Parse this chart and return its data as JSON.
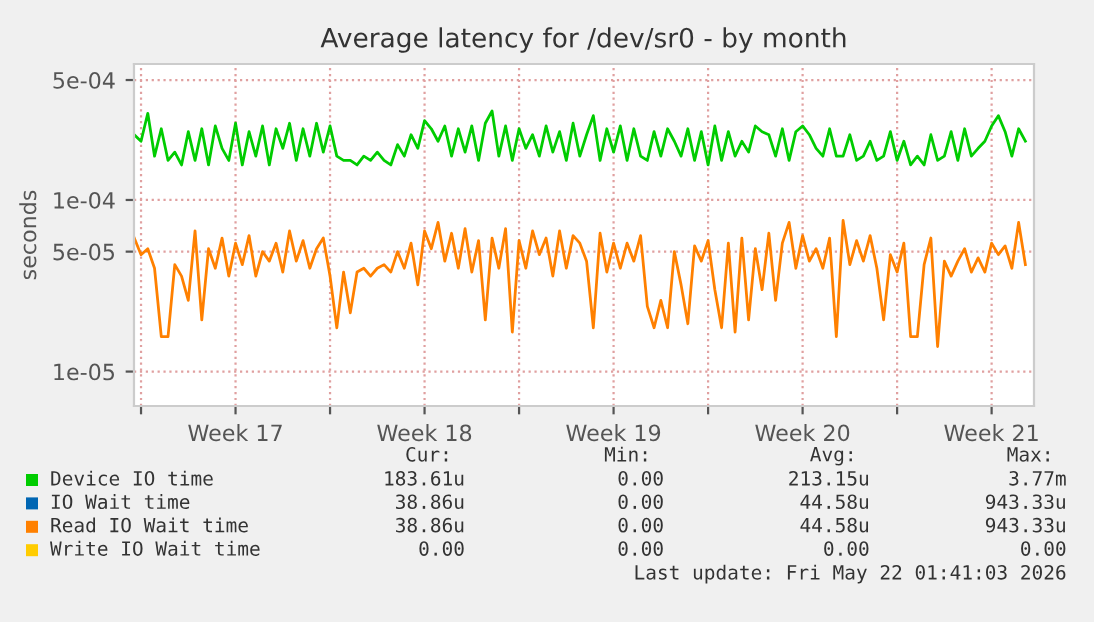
{
  "chart_data": {
    "type": "line",
    "title": "Average latency for /dev/sr0 - by month",
    "ylabel": "seconds",
    "log": "y",
    "x": [
      "2026-04-18T18:00",
      "2026-04-19T00:00",
      "2026-04-19T06:00",
      "2026-04-19T12:00",
      "2026-04-19T18:00",
      "2026-04-20T00:00",
      "2026-04-20T06:00",
      "2026-04-20T12:00",
      "2026-04-20T18:00",
      "2026-04-21T00:00",
      "2026-04-21T06:00",
      "2026-04-21T12:00",
      "2026-04-21T18:00",
      "2026-04-22T00:00",
      "2026-04-22T06:00",
      "2026-04-22T12:00",
      "2026-04-22T18:00",
      "2026-04-23T00:00",
      "2026-04-23T06:00",
      "2026-04-23T12:00",
      "2026-04-23T18:00",
      "2026-04-24T00:00",
      "2026-04-24T06:00",
      "2026-04-24T12:00",
      "2026-04-24T18:00",
      "2026-04-25T00:00",
      "2026-04-25T06:00",
      "2026-04-25T12:00",
      "2026-04-25T18:00",
      "2026-04-26T00:00",
      "2026-04-26T06:00",
      "2026-04-26T12:00",
      "2026-04-26T18:00",
      "2026-04-27T00:00",
      "2026-04-27T06:00",
      "2026-04-27T12:00",
      "2026-04-27T18:00",
      "2026-04-28T00:00",
      "2026-04-28T06:00",
      "2026-04-28T12:00",
      "2026-04-28T18:00",
      "2026-04-29T00:00",
      "2026-04-29T06:00",
      "2026-04-29T12:00",
      "2026-04-29T18:00",
      "2026-04-30T00:00",
      "2026-04-30T06:00",
      "2026-04-30T12:00",
      "2026-04-30T18:00",
      "2026-05-01T00:00",
      "2026-05-01T06:00",
      "2026-05-01T12:00",
      "2026-05-01T18:00",
      "2026-05-02T00:00",
      "2026-05-02T06:00",
      "2026-05-02T12:00",
      "2026-05-02T18:00",
      "2026-05-03T00:00",
      "2026-05-03T06:00",
      "2026-05-03T12:00",
      "2026-05-03T18:00",
      "2026-05-04T00:00",
      "2026-05-04T06:00",
      "2026-05-04T12:00",
      "2026-05-04T18:00",
      "2026-05-05T00:00",
      "2026-05-05T06:00",
      "2026-05-05T12:00",
      "2026-05-05T18:00",
      "2026-05-06T00:00",
      "2026-05-06T06:00",
      "2026-05-06T12:00",
      "2026-05-06T18:00",
      "2026-05-07T00:00",
      "2026-05-07T06:00",
      "2026-05-07T12:00",
      "2026-05-07T18:00",
      "2026-05-08T00:00",
      "2026-05-08T06:00",
      "2026-05-08T12:00",
      "2026-05-08T18:00",
      "2026-05-09T00:00",
      "2026-05-09T06:00",
      "2026-05-09T12:00",
      "2026-05-09T18:00",
      "2026-05-10T00:00",
      "2026-05-10T06:00",
      "2026-05-10T12:00",
      "2026-05-10T18:00",
      "2026-05-11T00:00",
      "2026-05-11T06:00",
      "2026-05-11T12:00",
      "2026-05-11T18:00",
      "2026-05-12T00:00",
      "2026-05-12T06:00",
      "2026-05-12T12:00",
      "2026-05-12T18:00",
      "2026-05-13T00:00",
      "2026-05-13T06:00",
      "2026-05-13T12:00",
      "2026-05-13T18:00",
      "2026-05-14T00:00",
      "2026-05-14T06:00",
      "2026-05-14T12:00",
      "2026-05-14T18:00",
      "2026-05-15T00:00",
      "2026-05-15T06:00",
      "2026-05-15T12:00",
      "2026-05-15T18:00",
      "2026-05-16T00:00",
      "2026-05-16T06:00",
      "2026-05-16T12:00",
      "2026-05-16T18:00",
      "2026-05-17T00:00",
      "2026-05-17T06:00",
      "2026-05-17T12:00",
      "2026-05-17T18:00",
      "2026-05-18T00:00",
      "2026-05-18T06:00",
      "2026-05-18T12:00",
      "2026-05-18T18:00",
      "2026-05-19T00:00",
      "2026-05-19T06:00",
      "2026-05-19T12:00",
      "2026-05-19T18:00",
      "2026-05-20T00:00",
      "2026-05-20T06:00",
      "2026-05-20T12:00",
      "2026-05-20T18:00",
      "2026-05-21T00:00",
      "2026-05-21T06:00",
      "2026-05-21T12:00",
      "2026-05-21T18:00"
    ],
    "series": [
      {
        "name": "Device IO time",
        "color": "#00cc00",
        "values": [
          0.00024,
          0.00022,
          0.00032,
          0.00018,
          0.00026,
          0.00017,
          0.00019,
          0.00016,
          0.00025,
          0.00017,
          0.00026,
          0.00016,
          0.00027,
          0.0002,
          0.00017,
          0.00028,
          0.00016,
          0.00025,
          0.00018,
          0.00027,
          0.00016,
          0.00026,
          0.0002,
          0.00028,
          0.00017,
          0.00026,
          0.00018,
          0.00028,
          0.00019,
          0.00027,
          0.00018,
          0.00017,
          0.00017,
          0.00016,
          0.00018,
          0.00017,
          0.00019,
          0.00017,
          0.00016,
          0.00021,
          0.00018,
          0.00024,
          0.0002,
          0.00029,
          0.00026,
          0.00022,
          0.00027,
          0.00018,
          0.00026,
          0.00019,
          0.00027,
          0.00017,
          0.00028,
          0.00033,
          0.00018,
          0.00027,
          0.00017,
          0.00026,
          0.0002,
          0.00024,
          0.00018,
          0.00027,
          0.00019,
          0.00025,
          0.00017,
          0.00028,
          0.00018,
          0.00024,
          0.00031,
          0.00017,
          0.00026,
          0.00019,
          0.00027,
          0.00017,
          0.00026,
          0.00018,
          0.00017,
          0.00025,
          0.00018,
          0.00026,
          0.00022,
          0.00018,
          0.00026,
          0.00017,
          0.00025,
          0.00016,
          0.00027,
          0.00017,
          0.00025,
          0.00018,
          0.00022,
          0.00019,
          0.00027,
          0.00025,
          0.00024,
          0.00018,
          0.00026,
          0.00017,
          0.00025,
          0.00027,
          0.00024,
          0.0002,
          0.00018,
          0.00026,
          0.00018,
          0.00018,
          0.00024,
          0.00017,
          0.00018,
          0.00022,
          0.00017,
          0.00018,
          0.00025,
          0.00017,
          0.00022,
          0.00016,
          0.00018,
          0.00016,
          0.00024,
          0.00017,
          0.00018,
          0.00025,
          0.00017,
          0.00026,
          0.00018,
          0.0002,
          0.00022,
          0.00027,
          0.00031,
          0.00025,
          0.00018,
          0.00026,
          0.00022
        ]
      },
      {
        "name": "IO Wait time",
        "color": "#0066b3",
        "values": [
          null,
          null,
          null,
          null,
          null,
          null,
          null,
          null,
          null,
          null,
          null,
          null,
          null,
          null,
          null,
          null,
          null,
          null,
          null,
          null,
          null,
          null,
          null,
          null,
          null,
          null,
          null,
          null,
          null,
          null,
          null,
          null,
          null,
          null,
          null,
          null,
          null,
          null,
          null,
          null,
          null,
          null,
          null,
          null,
          null,
          null,
          null,
          null,
          null,
          null,
          null,
          null,
          null,
          null,
          null,
          null,
          null,
          null,
          null,
          null,
          null,
          null,
          null,
          null,
          null,
          null,
          null,
          null,
          null,
          null,
          null,
          null,
          null,
          null,
          null,
          null,
          null,
          null,
          null,
          null,
          null,
          null,
          null,
          null,
          null,
          null,
          null,
          null,
          null,
          null,
          null,
          null,
          null,
          null,
          null,
          null,
          null,
          null,
          null,
          null,
          null,
          null,
          null,
          null,
          null,
          null,
          null,
          null,
          null,
          null,
          null,
          null,
          null,
          null,
          null,
          null,
          null,
          null,
          null,
          null,
          null,
          null,
          null,
          null,
          null,
          null,
          null,
          null,
          null,
          null,
          null,
          null,
          null
        ]
      },
      {
        "name": "Read IO Wait time",
        "color": "#ff8000",
        "values": [
          6e-05,
          4.8e-05,
          5.2e-05,
          4e-05,
          1.6e-05,
          1.6e-05,
          4.2e-05,
          3.6e-05,
          2.6e-05,
          6.6e-05,
          2e-05,
          5.2e-05,
          4e-05,
          6e-05,
          3.6e-05,
          5.6e-05,
          4.2e-05,
          6.2e-05,
          3.6e-05,
          5e-05,
          4.4e-05,
          5.6e-05,
          3.8e-05,
          6.6e-05,
          4.4e-05,
          5.8e-05,
          4e-05,
          5.2e-05,
          6e-05,
          3.6e-05,
          1.8e-05,
          3.8e-05,
          2.2e-05,
          3.8e-05,
          4e-05,
          3.6e-05,
          4e-05,
          4.2e-05,
          3.8e-05,
          5e-05,
          4e-05,
          5.6e-05,
          3.2e-05,
          6.6e-05,
          5.2e-05,
          7.4e-05,
          4.4e-05,
          6.4e-05,
          4e-05,
          6.8e-05,
          3.8e-05,
          5.8e-05,
          2e-05,
          6e-05,
          4e-05,
          6.8e-05,
          1.7e-05,
          5.8e-05,
          4e-05,
          6.6e-05,
          4.8e-05,
          6e-05,
          3.6e-05,
          6.6e-05,
          4e-05,
          6.2e-05,
          5.6e-05,
          4.4e-05,
          1.8e-05,
          6.4e-05,
          3.8e-05,
          5.6e-05,
          4e-05,
          5.6e-05,
          4.4e-05,
          6.2e-05,
          2.4e-05,
          1.8e-05,
          2.6e-05,
          1.8e-05,
          5e-05,
          3.2e-05,
          1.9e-05,
          5.4e-05,
          4.4e-05,
          5.8e-05,
          3e-05,
          1.8e-05,
          5.6e-05,
          1.7e-05,
          6e-05,
          2e-05,
          5.2e-05,
          3e-05,
          6.4e-05,
          2.6e-05,
          5.6e-05,
          7.4e-05,
          4e-05,
          6.2e-05,
          4.4e-05,
          5.2e-05,
          4e-05,
          6e-05,
          1.6e-05,
          7.6e-05,
          4.2e-05,
          5.8e-05,
          4.4e-05,
          6.2e-05,
          4e-05,
          2e-05,
          4.8e-05,
          3.8e-05,
          5.6e-05,
          1.6e-05,
          1.6e-05,
          4.2e-05,
          6e-05,
          1.4e-05,
          4.4e-05,
          3.6e-05,
          4.4e-05,
          5.2e-05,
          3.8e-05,
          4.6e-05,
          3.8e-05,
          5.6e-05,
          4.8e-05,
          5.4e-05,
          4e-05,
          7.4e-05,
          4.2e-05
        ]
      },
      {
        "name": "Write IO Wait time",
        "color": "#ffcc00",
        "values": [
          null,
          null,
          null,
          null,
          null,
          null,
          null,
          null,
          null,
          null,
          null,
          null,
          null,
          null,
          null,
          null,
          null,
          null,
          null,
          null,
          null,
          null,
          null,
          null,
          null,
          null,
          null,
          null,
          null,
          null,
          null,
          null,
          null,
          null,
          null,
          null,
          null,
          null,
          null,
          null,
          null,
          null,
          null,
          null,
          null,
          null,
          null,
          null,
          null,
          null,
          null,
          null,
          null,
          null,
          null,
          null,
          null,
          null,
          null,
          null,
          null,
          null,
          null,
          null,
          null,
          null,
          null,
          null,
          null,
          null,
          null,
          null,
          null,
          null,
          null,
          null,
          null,
          null,
          null,
          null,
          null,
          null,
          null,
          null,
          null,
          null,
          null,
          null,
          null,
          null,
          null,
          null,
          null,
          null,
          null,
          null,
          null,
          null,
          null,
          null,
          null,
          null,
          null,
          null,
          null,
          null,
          null,
          null,
          null,
          null,
          null,
          null,
          null,
          null,
          null,
          null,
          null,
          null,
          null,
          null,
          null,
          null,
          null,
          null,
          null,
          null,
          null,
          null,
          null,
          null,
          null,
          null,
          null
        ]
      }
    ],
    "xlim": [
      "2026-04-18T17:45",
      "2026-05-22T01:40"
    ],
    "ylim": [
      6.3e-06,
      0.00062
    ],
    "xticks": [
      {
        "value": "2026-04-19",
        "label": null
      },
      {
        "value": "2026-04-22T12:00",
        "label": "Week 17"
      },
      {
        "value": "2026-04-26",
        "label": null
      },
      {
        "value": "2026-04-29T12:00",
        "label": "Week 18"
      },
      {
        "value": "2026-05-03",
        "label": null
      },
      {
        "value": "2026-05-06T12:00",
        "label": "Week 19"
      },
      {
        "value": "2026-05-10",
        "label": null
      },
      {
        "value": "2026-05-13T12:00",
        "label": "Week 20"
      },
      {
        "value": "2026-05-17",
        "label": null
      },
      {
        "value": "2026-05-20T12:00",
        "label": "Week 21"
      }
    ],
    "yticks": [
      {
        "value": 1e-05,
        "label": "1e-05"
      },
      {
        "value": 5e-05,
        "label": "5e-05"
      },
      {
        "value": 0.0001,
        "label": "1e-04"
      },
      {
        "value": 0.0005,
        "label": "5e-04"
      }
    ],
    "grid": true,
    "legend": "bottom",
    "line_style": "solid",
    "marker": "none",
    "annotations": [
      "Cur:",
      "Min:",
      "Avg:",
      "Max:",
      "183.61u",
      "0.00",
      "213.15u",
      "3.77m",
      "38.86u",
      "0.00",
      "44.58u",
      "943.33u",
      "38.86u",
      "0.00",
      "44.58u",
      "943.33u",
      "0.00",
      "0.00",
      "0.00",
      "0.00",
      "Last update: Fri May 22 01:41:03 2026"
    ]
  }
}
